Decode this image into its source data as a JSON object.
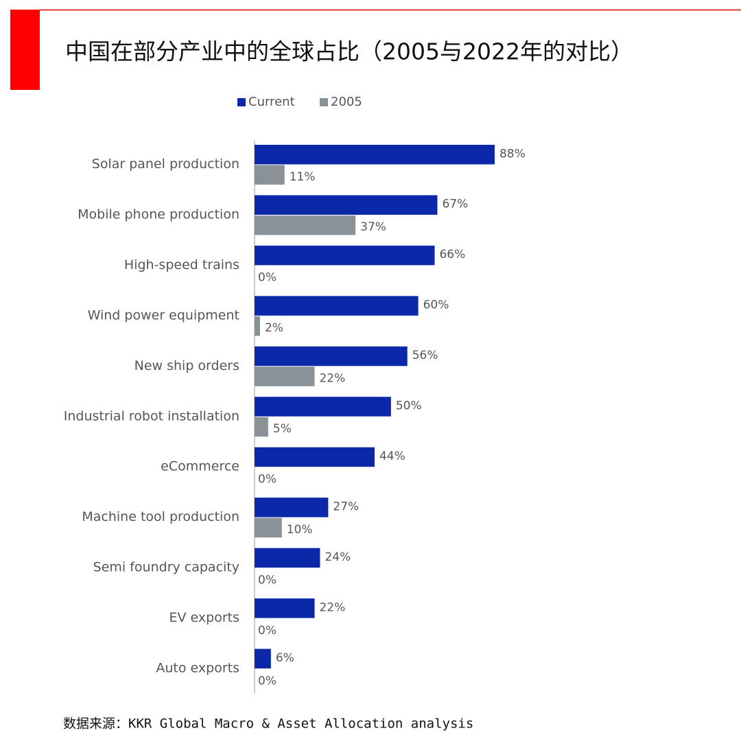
{
  "chart_data": {
    "type": "hbar",
    "title": "中国在部分产业中的全球占比（2005与2022年的对比）",
    "categories": [
      "Solar panel production",
      "Mobile phone production",
      "High-speed trains",
      "Wind power equipment",
      "New ship orders",
      "Industrial robot installation",
      "eCommerce",
      "Machine tool production",
      "Semi foundry capacity",
      "EV exports",
      "Auto exports"
    ],
    "series": [
      {
        "name": "Current",
        "color": "#0a28a8",
        "values": [
          88,
          67,
          66,
          60,
          56,
          50,
          44,
          27,
          24,
          22,
          6
        ],
        "value_labels": [
          "88%",
          "67%",
          "66%",
          "60%",
          "56%",
          "50%",
          "44%",
          "27%",
          "24%",
          "22%",
          "6%"
        ]
      },
      {
        "name": "2005",
        "color": "#8a9298",
        "values": [
          11,
          37,
          0,
          2,
          22,
          5,
          0,
          10,
          0,
          0,
          0
        ],
        "value_labels": [
          "11%",
          "37%",
          "0%",
          "2%",
          "22%",
          "5%",
          "0%",
          "10%",
          "0%",
          "0%",
          "0%"
        ]
      }
    ],
    "source": "数据来源：KKR Global Macro & Asset Allocation analysis"
  }
}
